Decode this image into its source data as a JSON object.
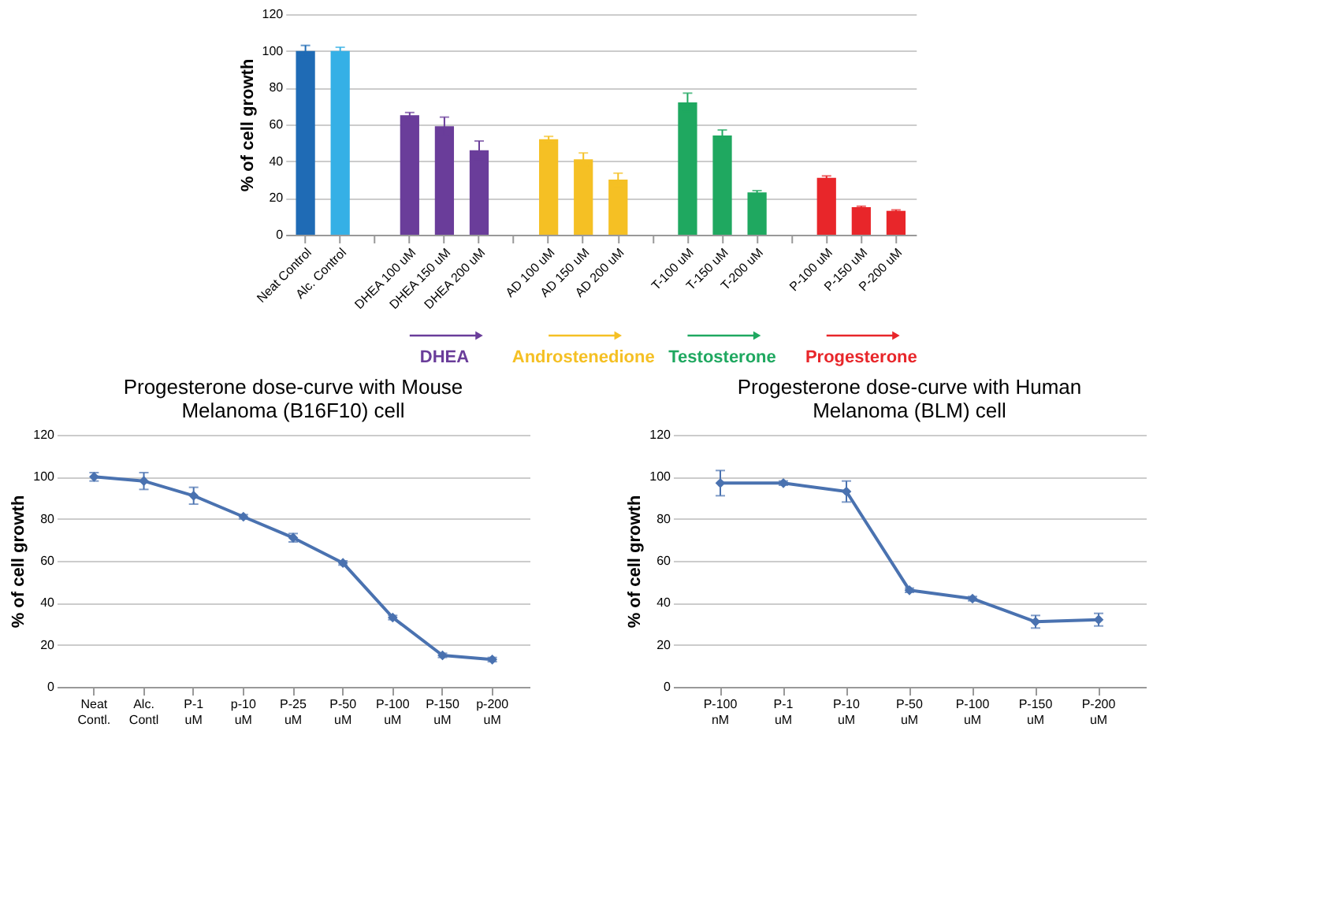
{
  "chart_data": [
    {
      "type": "bar",
      "ylabel": "% of cell growth",
      "categories": [
        "Neat Control",
        "Alc. Control",
        null,
        "DHEA 100 uM",
        "DHEA 150 uM",
        "DHEA 200 uM",
        null,
        "AD 100 uM",
        "AD 150 uM",
        "AD 200 uM",
        null,
        "T-100 uM",
        "T-150 uM",
        "T-200 uM",
        null,
        "P-100 uM",
        "P-150 uM",
        "P-200 uM"
      ],
      "values": [
        100,
        100,
        null,
        65,
        59,
        46,
        null,
        52,
        41,
        30,
        null,
        72,
        54,
        23,
        null,
        31,
        15,
        13
      ],
      "errors": [
        3,
        2,
        null,
        1.5,
        5,
        5,
        null,
        1.5,
        3.5,
        3.5,
        null,
        5,
        3,
        1,
        null,
        1,
        0.5,
        0.5
      ],
      "colors": [
        "#1f6bb5",
        "#35b0e6",
        null,
        "#6a3d9a",
        "#6a3d9a",
        "#6a3d9a",
        null,
        "#f5c024",
        "#f5c024",
        "#f5c024",
        null,
        "#1fa860",
        "#1fa860",
        "#1fa860",
        null,
        "#e8262a",
        "#e8262a",
        "#e8262a"
      ],
      "ylim": [
        0,
        120
      ],
      "yticks": [
        0,
        20,
        40,
        60,
        80,
        100,
        120
      ],
      "grid": "y",
      "annotations": [
        "DHEA",
        "Androstenedione",
        "Testosterone",
        "Progesterone"
      ]
    },
    {
      "type": "line",
      "title": "Progesterone dose-curve with Mouse Melanoma (B16F10) cell",
      "ylabel": "% of cell growth",
      "categories": [
        "Neat Contl.",
        "Alc. Contl",
        "P-1 uM",
        "p-10 uM",
        "P-25 uM",
        "P-50 uM",
        "P-100 uM",
        "P-150 uM",
        "p-200 uM"
      ],
      "series": [
        {
          "color": "#4a72b0",
          "values": [
            100,
            98,
            91,
            81,
            71,
            59,
            33,
            15,
            13
          ],
          "errors": [
            2,
            4,
            4,
            1,
            2,
            1,
            1,
            1,
            1
          ]
        }
      ],
      "ylim": [
        0,
        120
      ],
      "yticks": [
        0,
        20,
        40,
        60,
        80,
        100,
        120
      ],
      "grid": "y",
      "marker": "diamond"
    },
    {
      "type": "line",
      "title": "Progesterone dose-curve with Human Melanoma (BLM) cell",
      "ylabel": "% of cell growth",
      "categories": [
        "P-100 nM",
        "P-1 uM",
        "P-10 uM",
        "P-50 uM",
        "P-100 uM",
        "P-150 uM",
        "P-200 uM"
      ],
      "series": [
        {
          "color": "#4a72b0",
          "values": [
            97,
            97,
            93,
            46,
            42,
            31,
            32
          ],
          "errors": [
            6,
            1,
            5,
            1,
            1,
            3,
            3
          ]
        }
      ],
      "ylim": [
        0,
        120
      ],
      "yticks": [
        0,
        20,
        40,
        60,
        80,
        100,
        120
      ],
      "grid": "y",
      "marker": "diamond"
    }
  ]
}
